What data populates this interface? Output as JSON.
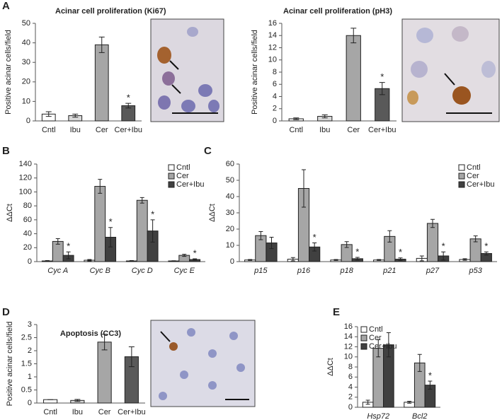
{
  "chart_data": [
    {
      "type": "bar",
      "panel": "A",
      "title": "Acinar cell proliferation (Ki67)",
      "y_label": "Positive acinar cells/field",
      "categories": [
        "Cntl",
        "Ibu",
        "Cer",
        "Cer+Ibu"
      ],
      "values": [
        3.5,
        2.7,
        39,
        7.8
      ],
      "errors": [
        1.2,
        0.8,
        4,
        1.2
      ],
      "annotations": [
        null,
        null,
        null,
        "*"
      ],
      "colors": [
        "#ffffff",
        "#d9d9d9",
        "#a6a6a6",
        "#595959"
      ],
      "ylim": [
        0,
        50
      ],
      "yticks": [
        0,
        10,
        20,
        30,
        40,
        50
      ]
    },
    {
      "type": "bar",
      "title": "Acinar cell proliferation (pH3)",
      "y_label": "Positive acinar cells/field",
      "categories": [
        "Cntl",
        "Ibu",
        "Cer",
        "Cer+Ibu"
      ],
      "values": [
        0.35,
        0.75,
        14,
        5.3
      ],
      "errors": [
        0.15,
        0.25,
        1.2,
        1.0
      ],
      "annotations": [
        null,
        null,
        null,
        "*"
      ],
      "colors": [
        "#ffffff",
        "#d9d9d9",
        "#a6a6a6",
        "#595959"
      ],
      "ylim": [
        0,
        16
      ],
      "yticks": [
        0,
        2,
        4,
        6,
        8,
        10,
        12,
        14,
        16
      ]
    },
    {
      "type": "grouped-bar",
      "panel": "B",
      "y_label": "ΔΔCt",
      "italic_categories": true,
      "legend": "top-right",
      "categories": [
        "Cyc A",
        "Cyc B",
        "Cyc D",
        "Cyc E"
      ],
      "series": [
        {
          "name": "Cntl",
          "color": "#ffffff",
          "values": [
            1,
            2,
            1,
            1
          ],
          "errors": [
            0.5,
            1,
            0.5,
            0.3
          ]
        },
        {
          "name": "Cer",
          "color": "#a6a6a6",
          "values": [
            29,
            108,
            88,
            9
          ],
          "errors": [
            4,
            10,
            4,
            1.5
          ]
        },
        {
          "name": "Cer+Ibu",
          "color": "#404040",
          "values": [
            9,
            35,
            44,
            3
          ],
          "errors": [
            5,
            14,
            16,
            1
          ],
          "annotations": [
            "*",
            "*",
            "*",
            "*"
          ]
        }
      ],
      "ylim": [
        0,
        140
      ],
      "yticks": [
        0,
        20,
        40,
        60,
        80,
        100,
        120,
        140
      ]
    },
    {
      "type": "grouped-bar",
      "panel": "C",
      "y_label": "ΔΔCt",
      "italic_categories": true,
      "legend": "top-right",
      "categories": [
        "p15",
        "p16",
        "p18",
        "p21",
        "p27",
        "p53"
      ],
      "series": [
        {
          "name": "Cntl",
          "color": "#ffffff",
          "values": [
            1,
            1.5,
            1,
            1,
            2,
            1.3
          ],
          "errors": [
            0.3,
            1,
            0.3,
            0.3,
            1.5,
            0.5
          ]
        },
        {
          "name": "Cer",
          "color": "#a6a6a6",
          "values": [
            16,
            45,
            10.5,
            15.5,
            23.5,
            14
          ],
          "errors": [
            2.5,
            11.5,
            1.8,
            3.5,
            2.5,
            1.8
          ]
        },
        {
          "name": "Cer+Ibu",
          "color": "#404040",
          "values": [
            11.5,
            9,
            1.8,
            1.5,
            3.5,
            5
          ],
          "errors": [
            3.5,
            2.5,
            0.8,
            0.8,
            2.5,
            1
          ],
          "annotations": [
            null,
            "*",
            "*",
            "*",
            "*",
            "*"
          ]
        }
      ],
      "ylim": [
        0,
        60
      ],
      "yticks": [
        0,
        10,
        20,
        30,
        40,
        50,
        60
      ]
    },
    {
      "type": "bar",
      "panel": "D",
      "title": "Apoptosis (CC3)",
      "y_label": "Positive acinar cells/field",
      "categories": [
        "Cntl",
        "Ibu",
        "Cer",
        "Cer+Ibu"
      ],
      "values": [
        0.13,
        0.1,
        2.33,
        1.77
      ],
      "errors": [
        0,
        0.04,
        0.3,
        0.38
      ],
      "colors": [
        "#ffffff",
        "#d9d9d9",
        "#a6a6a6",
        "#595959"
      ],
      "ylim": [
        0,
        3
      ],
      "yticks": [
        0,
        0.5,
        1,
        1.5,
        2,
        2.5,
        3
      ]
    },
    {
      "type": "grouped-bar",
      "panel": "E",
      "y_label": "ΔΔCt",
      "italic_categories": true,
      "legend": "top-left",
      "categories": [
        "Hsp72",
        "Bcl2"
      ],
      "series": [
        {
          "name": "Cntl",
          "color": "#ffffff",
          "values": [
            1,
            1
          ],
          "errors": [
            0.4,
            0.2
          ]
        },
        {
          "name": "Cer",
          "color": "#a6a6a6",
          "values": [
            11.7,
            8.8
          ],
          "errors": [
            1.7,
            1.7
          ]
        },
        {
          "name": "Cer+Ibu",
          "color": "#404040",
          "values": [
            12.4,
            4.4
          ],
          "errors": [
            2.4,
            0.8
          ],
          "annotations": [
            null,
            "*"
          ]
        }
      ],
      "ylim": [
        0,
        16
      ],
      "yticks": [
        0,
        2,
        4,
        6,
        8,
        10,
        12,
        14,
        16
      ]
    }
  ]
}
